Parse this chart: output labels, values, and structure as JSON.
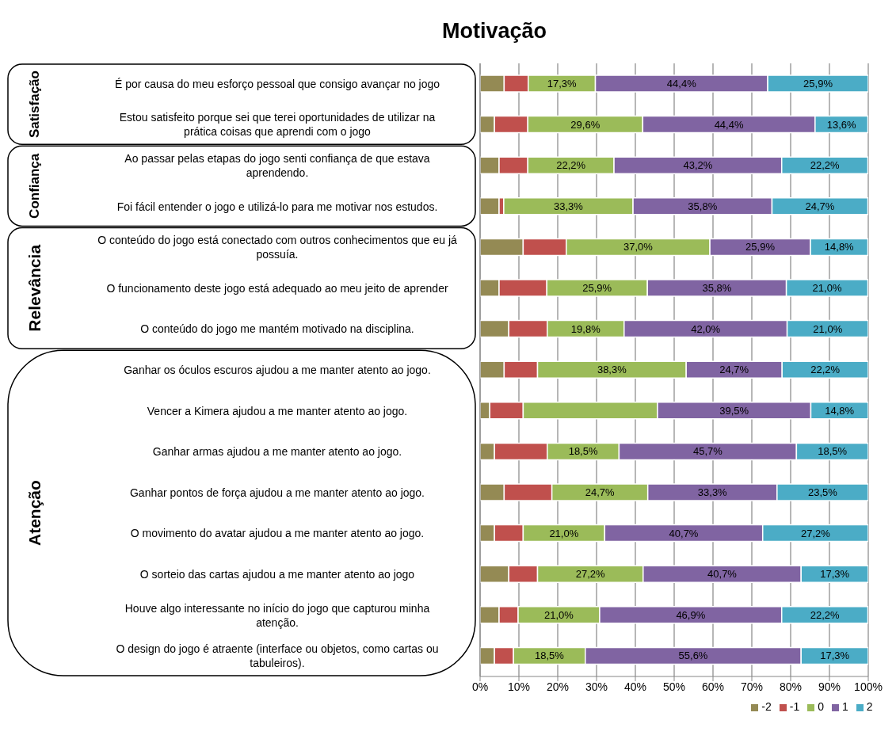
{
  "chart_data": {
    "type": "bar",
    "orientation": "horizontal",
    "stacked": true,
    "title": "Motivação",
    "categories": [
      "É por causa do meu esforço pessoal que consigo avançar no jogo",
      "Estou satisfeito porque sei que terei oportunidades de utilizar na prática coisas que aprendi com o jogo",
      "Ao passar pelas etapas do jogo senti confiança de que estava aprendendo.",
      "Foi fácil entender o jogo e utilizá-lo para me motivar nos estudos.",
      "O conteúdo do jogo está conectado com outros conhecimentos que eu já possuía.",
      "O funcionamento deste jogo está adequado ao meu jeito de aprender",
      "O conteúdo do jogo me mantém motivado na disciplina.",
      "Ganhar os óculos escuros ajudou a me manter atento ao jogo.",
      "Vencer a Kimera ajudou a me manter atento ao jogo.",
      "Ganhar armas ajudou a me manter atento ao jogo.",
      "Ganhar pontos de força ajudou a me manter atento ao jogo.",
      "O movimento do avatar ajudou a me manter atento ao jogo.",
      "O sorteio das cartas ajudou a me manter atento ao jogo",
      "Houve algo interessante no início do jogo que capturou minha atenção.",
      "O design do jogo é atraente (interface ou objetos, como cartas ou tabuleiros)."
    ],
    "series": [
      {
        "name": "-2",
        "color": "#948a54",
        "values": [
          6.2,
          3.7,
          4.9,
          4.9,
          11.1,
          4.9,
          7.4,
          6.2,
          2.5,
          3.7,
          6.2,
          3.7,
          7.4,
          4.9,
          3.7
        ]
      },
      {
        "name": "-1",
        "color": "#c0504d",
        "values": [
          6.2,
          8.6,
          7.4,
          1.2,
          11.1,
          12.3,
          9.9,
          8.6,
          8.6,
          13.6,
          12.3,
          7.4,
          7.4,
          4.9,
          4.9
        ]
      },
      {
        "name": "0",
        "color": "#9bbb59",
        "values": [
          17.3,
          29.6,
          22.2,
          33.3,
          37.0,
          25.9,
          19.8,
          38.3,
          34.6,
          18.5,
          24.7,
          21.0,
          27.2,
          21.0,
          18.5
        ],
        "value_labels": [
          "17,3%",
          "29,6%",
          "22,2%",
          "33,3%",
          "37,0%",
          "25,9%",
          "19,8%",
          "38,3%",
          null,
          "18,5%",
          "24,7%",
          "21,0%",
          "27,2%",
          "21,0%",
          "18,5%"
        ]
      },
      {
        "name": "1",
        "color": "#8064a2",
        "values": [
          44.4,
          44.4,
          43.2,
          35.8,
          25.9,
          35.8,
          42.0,
          24.7,
          39.5,
          45.7,
          33.3,
          40.7,
          40.7,
          46.9,
          55.6
        ],
        "value_labels": [
          "44,4%",
          "44,4%",
          "43,2%",
          "35,8%",
          "25,9%",
          "35,8%",
          "42,0%",
          "24,7%",
          "39,5%",
          "45,7%",
          "33,3%",
          "40,7%",
          "40,7%",
          "46,9%",
          "55,6%"
        ]
      },
      {
        "name": "2",
        "color": "#4bacc6",
        "values": [
          25.9,
          13.6,
          22.2,
          24.7,
          14.8,
          21.0,
          21.0,
          22.2,
          14.8,
          18.5,
          23.5,
          27.2,
          17.3,
          22.2,
          17.3
        ],
        "value_labels": [
          "25,9%",
          "13,6%",
          "22,2%",
          "24,7%",
          "14,8%",
          "21,0%",
          "21,0%",
          "22,2%",
          "14,8%",
          "18,5%",
          "23,5%",
          "27,2%",
          "17,3%",
          "22,2%",
          "17,3%"
        ]
      }
    ],
    "xlim": [
      0,
      100
    ],
    "xticks": [
      {
        "value": 0,
        "label": "0%"
      },
      {
        "value": 10,
        "label": "10%"
      },
      {
        "value": 20,
        "label": "20%"
      },
      {
        "value": 30,
        "label": "30%"
      },
      {
        "value": 40,
        "label": "40%"
      },
      {
        "value": 50,
        "label": "50%"
      },
      {
        "value": 60,
        "label": "60%"
      },
      {
        "value": 70,
        "label": "70%"
      },
      {
        "value": 80,
        "label": "80%"
      },
      {
        "value": 90,
        "label": "90%"
      },
      {
        "value": 100,
        "label": "100%"
      }
    ],
    "grid": "x",
    "legend": "bottom",
    "annotations": [
      "Satisfação",
      "Confiança",
      "Relevância",
      "Atenção"
    ]
  }
}
